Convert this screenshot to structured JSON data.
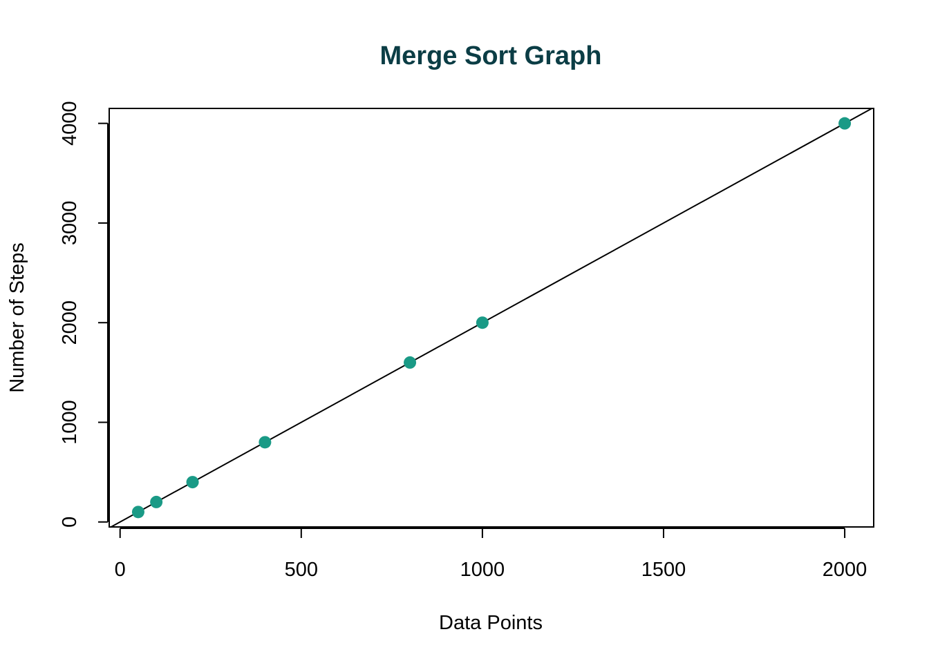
{
  "chart_data": {
    "type": "scatter",
    "title": "Merge Sort Graph",
    "xlabel": "Data Points",
    "ylabel": "Number of Steps",
    "xlim": [
      -30,
      2080
    ],
    "ylim": [
      -50,
      4150
    ],
    "x_ticks": [
      0,
      500,
      1000,
      1500,
      2000
    ],
    "y_ticks": [
      0,
      1000,
      2000,
      3000,
      4000
    ],
    "points": [
      {
        "x": 50,
        "y": 100
      },
      {
        "x": 100,
        "y": 200
      },
      {
        "x": 200,
        "y": 400
      },
      {
        "x": 400,
        "y": 800
      },
      {
        "x": 800,
        "y": 1600
      },
      {
        "x": 1000,
        "y": 2000
      },
      {
        "x": 2000,
        "y": 4000
      }
    ],
    "fit_line": {
      "intercept": 0,
      "slope": 2
    },
    "grid": false,
    "colors": {
      "title": "#0b3d45",
      "points": "#1a9a86",
      "line": "#000000"
    }
  }
}
